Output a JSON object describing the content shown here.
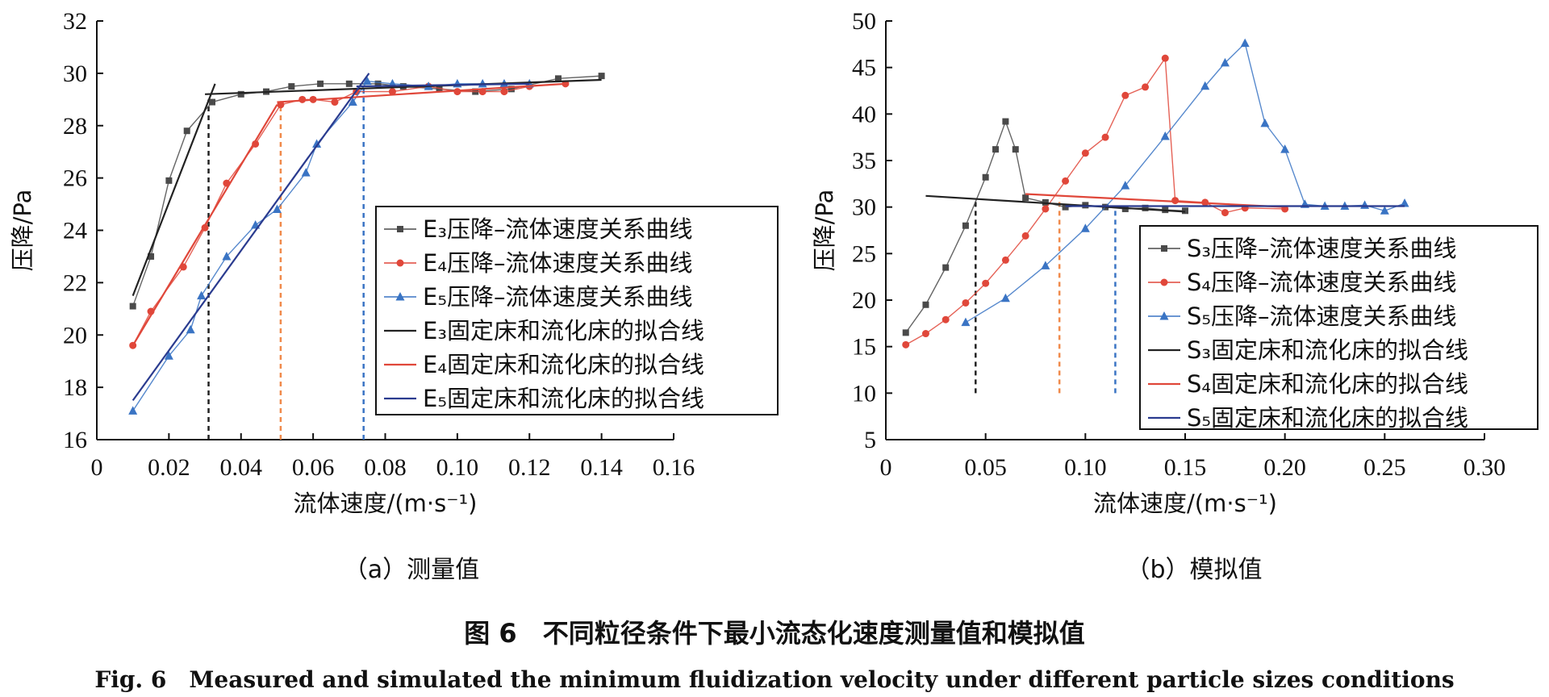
{
  "figure": {
    "caption_cn": "图 6　不同粒径条件下最小流态化速度测量值和模拟值",
    "caption_en": "Fig. 6　Measured and simulated the minimum fluidization velocity under different particle sizes conditions"
  },
  "colors": {
    "black": "#4a4a4a",
    "red": "#e0473a",
    "blue": "#3a74c4",
    "darkblue": "#2a3b8f",
    "orange": "#f08a4b"
  },
  "chart_data": [
    {
      "type": "line",
      "panel": "a",
      "subtitle": "（a）测量值",
      "xlabel": "流体速度/(m·s⁻¹)",
      "ylabel": "压降/Pa",
      "xlim": [
        0,
        0.16
      ],
      "ylim": [
        16,
        32
      ],
      "xticks": [
        "0",
        "0.02",
        "0.04",
        "0.06",
        "0.08",
        "0.10",
        "0.12",
        "0.14",
        "0.16"
      ],
      "yticks": [
        "16",
        "18",
        "20",
        "22",
        "24",
        "26",
        "28",
        "30",
        "32"
      ],
      "legend_position": "right-center",
      "series": [
        {
          "name": "E₃压降–流体速度关系曲线",
          "color": "#4a4a4a",
          "marker": "square",
          "x": [
            0.01,
            0.015,
            0.02,
            0.025,
            0.032,
            0.04,
            0.047,
            0.054,
            0.062,
            0.07,
            0.078,
            0.085,
            0.095,
            0.105,
            0.115,
            0.128,
            0.14
          ],
          "y": [
            21.1,
            23.0,
            25.9,
            27.8,
            28.9,
            29.2,
            29.3,
            29.5,
            29.6,
            29.6,
            29.6,
            29.5,
            29.4,
            29.3,
            29.4,
            29.8,
            29.9
          ]
        },
        {
          "name": "E₄压降–流体速度关系曲线",
          "color": "#e0473a",
          "marker": "circle",
          "x": [
            0.01,
            0.015,
            0.024,
            0.03,
            0.036,
            0.044,
            0.051,
            0.057,
            0.06,
            0.066,
            0.072,
            0.082,
            0.092,
            0.1,
            0.107,
            0.113,
            0.12,
            0.13
          ],
          "y": [
            19.6,
            20.9,
            22.6,
            24.1,
            25.8,
            27.3,
            28.8,
            29.0,
            29.0,
            28.9,
            29.3,
            29.3,
            29.5,
            29.3,
            29.3,
            29.3,
            29.5,
            29.6
          ]
        },
        {
          "name": "E₅压降–流体速度关系曲线",
          "color": "#3a74c4",
          "marker": "triangle",
          "x": [
            0.01,
            0.02,
            0.026,
            0.029,
            0.036,
            0.044,
            0.05,
            0.058,
            0.061,
            0.071,
            0.075,
            0.082,
            0.092,
            0.1,
            0.107,
            0.113,
            0.12
          ],
          "y": [
            17.1,
            19.2,
            20.2,
            21.5,
            23.0,
            24.2,
            24.8,
            26.2,
            27.3,
            28.9,
            29.7,
            29.6,
            29.5,
            29.6,
            29.6,
            29.6,
            29.6
          ]
        },
        {
          "name": "E₃固定床和流化床的拟合线",
          "color": "#222222",
          "marker": "none",
          "segments": [
            {
              "x": [
                0.01,
                0.0328
              ],
              "y": [
                21.5,
                29.6
              ]
            },
            {
              "x": [
                0.03,
                0.14
              ],
              "y": [
                29.2,
                29.75
              ]
            }
          ]
        },
        {
          "name": "E₄固定床和流化床的拟合线",
          "color": "#e0473a",
          "marker": "none",
          "segments": [
            {
              "x": [
                0.01,
                0.05
              ],
              "y": [
                19.6,
                28.8
              ]
            },
            {
              "x": [
                0.05,
                0.13
              ],
              "y": [
                28.9,
                29.6
              ]
            }
          ]
        },
        {
          "name": "E₅固定床和流化床的拟合线",
          "color": "#2a3b8f",
          "marker": "none",
          "segments": [
            {
              "x": [
                0.01,
                0.0755
              ],
              "y": [
                17.5,
                30.0
              ]
            },
            {
              "x": [
                0.072,
                0.12
              ],
              "y": [
                29.5,
                29.6
              ]
            }
          ]
        }
      ],
      "vlines": [
        {
          "x": 0.031,
          "y0": 16,
          "y1": 29.0,
          "color": "#222222"
        },
        {
          "x": 0.051,
          "y0": 16,
          "y1": 28.9,
          "color": "#f08a4b"
        },
        {
          "x": 0.074,
          "y0": 16,
          "y1": 29.6,
          "color": "#3a74c4"
        }
      ]
    },
    {
      "type": "line",
      "panel": "b",
      "subtitle": "（b）模拟值",
      "xlabel": "流体速度/(m·s⁻¹)",
      "ylabel": "压降/Pa",
      "xlim": [
        0,
        0.3
      ],
      "ylim": [
        5,
        50
      ],
      "xticks": [
        "0",
        "0.05",
        "0.10",
        "0.15",
        "0.20",
        "0.25",
        "0.30"
      ],
      "yticks": [
        "5",
        "10",
        "15",
        "20",
        "25",
        "30",
        "35",
        "40",
        "45",
        "50"
      ],
      "legend_position": "bottom-right",
      "series": [
        {
          "name": "S₃压降–流体速度关系曲线",
          "color": "#4a4a4a",
          "marker": "square",
          "x": [
            0.01,
            0.02,
            0.03,
            0.04,
            0.05,
            0.055,
            0.06,
            0.065,
            0.07,
            0.08,
            0.09,
            0.1,
            0.11,
            0.12,
            0.13,
            0.14,
            0.15
          ],
          "y": [
            16.5,
            19.5,
            23.5,
            28.0,
            33.2,
            36.2,
            39.2,
            36.2,
            31.0,
            30.5,
            30.0,
            30.2,
            30.0,
            29.8,
            29.9,
            29.7,
            29.6
          ]
        },
        {
          "name": "S₄压降–流体速度关系曲线",
          "color": "#e0473a",
          "marker": "circle",
          "x": [
            0.01,
            0.02,
            0.03,
            0.04,
            0.05,
            0.06,
            0.07,
            0.08,
            0.09,
            0.1,
            0.11,
            0.12,
            0.13,
            0.14,
            0.145,
            0.16,
            0.17,
            0.18,
            0.2
          ],
          "y": [
            15.2,
            16.4,
            17.9,
            19.7,
            21.8,
            24.3,
            26.9,
            29.8,
            32.8,
            35.8,
            37.5,
            42.0,
            42.9,
            46.0,
            30.7,
            30.5,
            29.4,
            29.9,
            29.8
          ]
        },
        {
          "name": "S₅压降–流体速度关系曲线",
          "color": "#3a74c4",
          "marker": "triangle",
          "x": [
            0.04,
            0.06,
            0.08,
            0.1,
            0.12,
            0.14,
            0.16,
            0.17,
            0.18,
            0.19,
            0.2,
            0.21,
            0.22,
            0.23,
            0.24,
            0.25,
            0.26
          ],
          "y": [
            17.6,
            20.2,
            23.7,
            27.7,
            32.3,
            37.6,
            43.0,
            45.5,
            47.6,
            39.0,
            36.2,
            30.3,
            30.1,
            30.1,
            30.2,
            29.6,
            30.4
          ]
        },
        {
          "name": "S₃固定床和流化床的拟合线",
          "color": "#222222",
          "marker": "none",
          "segments": [
            {
              "x": [
                0.02,
                0.15
              ],
              "y": [
                31.2,
                29.5
              ]
            }
          ]
        },
        {
          "name": "S₄固定床和流化床的拟合线",
          "color": "#e0473a",
          "marker": "none",
          "segments": [
            {
              "x": [
                0.07,
                0.2
              ],
              "y": [
                31.4,
                30.0
              ]
            }
          ]
        },
        {
          "name": "S₅固定床和流化床的拟合线",
          "color": "#2a3b8f",
          "marker": "none",
          "segments": [
            {
              "x": [
                0.09,
                0.26
              ],
              "y": [
                30.1,
                30.1
              ]
            }
          ]
        }
      ],
      "vlines": [
        {
          "x": 0.045,
          "y0": 10,
          "y1": 30.7,
          "color": "#222222"
        },
        {
          "x": 0.087,
          "y0": 10,
          "y1": 31.0,
          "color": "#f08a4b"
        },
        {
          "x": 0.115,
          "y0": 10,
          "y1": 30.0,
          "color": "#3a74c4"
        }
      ]
    }
  ]
}
